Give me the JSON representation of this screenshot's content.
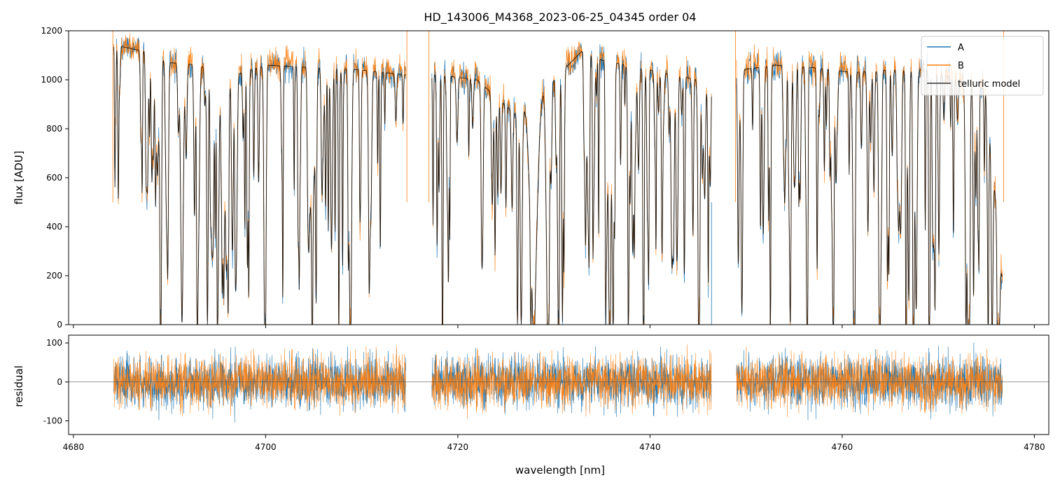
{
  "chart_data": [
    {
      "type": "line",
      "panel": "spectrum",
      "title": "HD_143006_M4368_2023-06-25_04345  order 04",
      "xlabel": "",
      "ylabel": "flux [ADU]",
      "xlim": [
        4679.5,
        4781.5
      ],
      "ylim": [
        0,
        1200
      ],
      "yticks": [
        0,
        200,
        400,
        600,
        800,
        1000,
        1200
      ],
      "xticks": [
        4680,
        4700,
        4720,
        4740,
        4760,
        4780
      ],
      "grid": false,
      "legend_position": "top-right",
      "series": [
        {
          "name": "A",
          "color": "#1f77b4"
        },
        {
          "name": "B",
          "color": "#ff7f0e"
        },
        {
          "name": "telluric model",
          "color": "#000000"
        }
      ],
      "segments": [
        [
          4684.2,
          4714.6
        ],
        [
          4717.3,
          4746.4
        ],
        [
          4749.0,
          4776.7
        ]
      ],
      "continuum": {
        "x": [
          4684.5,
          4688,
          4690,
          4693,
          4696,
          4700,
          4705,
          4710,
          4714.5,
          4718,
          4722,
          4726,
          4730,
          4733,
          4735,
          4740,
          4745,
          4749.5,
          4753,
          4757,
          4761,
          4765,
          4769,
          4772,
          4775,
          4776.6
        ],
        "y": [
          1140,
          1110,
          1070,
          1060,
          1010,
          1060,
          1050,
          1040,
          1020,
          1020,
          1000,
          860,
          1000,
          1120,
          1080,
          1040,
          1000,
          1040,
          1060,
          1050,
          1030,
          1040,
          1040,
          1000,
          960,
          200
        ]
      },
      "deep_lines": [
        {
          "x": 4691.3,
          "depth": 1060,
          "width": 0.18
        },
        {
          "x": 4695.6,
          "depth": 680,
          "width": 0.22
        },
        {
          "x": 4699.9,
          "depth": 1050,
          "width": 0.12
        },
        {
          "x": 4708.8,
          "depth": 1040,
          "width": 0.14
        },
        {
          "x": 4726.6,
          "depth": 880,
          "width": 0.14
        },
        {
          "x": 4727.9,
          "depth": 860,
          "width": 0.5
        },
        {
          "x": 4729.3,
          "depth": 700,
          "width": 0.2
        },
        {
          "x": 4735.8,
          "depth": 1080,
          "width": 0.16
        },
        {
          "x": 4745.1,
          "depth": 1000,
          "width": 0.14
        },
        {
          "x": 4754.6,
          "depth": 1050,
          "width": 0.12
        },
        {
          "x": 4761.2,
          "depth": 980,
          "width": 0.14
        },
        {
          "x": 4763.9,
          "depth": 1040,
          "width": 0.14
        },
        {
          "x": 4767.7,
          "depth": 980,
          "width": 0.14
        },
        {
          "x": 4773.1,
          "depth": 1020,
          "width": 0.14
        }
      ],
      "spikes": [
        {
          "x": 4684.1,
          "series": "B",
          "y": 1200
        },
        {
          "x": 4714.7,
          "series": "B",
          "y": 1200
        },
        {
          "x": 4717.0,
          "series": "B",
          "y": 1200
        },
        {
          "x": 4746.4,
          "series": "A",
          "y": 0
        },
        {
          "x": 4748.9,
          "series": "B",
          "y": 1200
        },
        {
          "x": 4776.8,
          "series": "B",
          "y": 1200
        }
      ]
    },
    {
      "type": "line",
      "panel": "residual",
      "xlabel": "wavelength [nm]",
      "ylabel": "residual",
      "xlim": [
        4679.5,
        4781.5
      ],
      "ylim": [
        -135,
        120
      ],
      "yticks": [
        -100,
        0,
        100
      ],
      "xticks": [
        4680,
        4700,
        4720,
        4740,
        4760,
        4780
      ],
      "grid": false,
      "zero_line": true,
      "typical_amplitude": 60,
      "series": [
        {
          "name": "A",
          "color": "#1f77b4"
        },
        {
          "name": "B",
          "color": "#ff7f0e"
        }
      ],
      "segments": [
        [
          4684.2,
          4714.6
        ],
        [
          4717.3,
          4746.4
        ],
        [
          4749.0,
          4776.7
        ]
      ]
    }
  ]
}
